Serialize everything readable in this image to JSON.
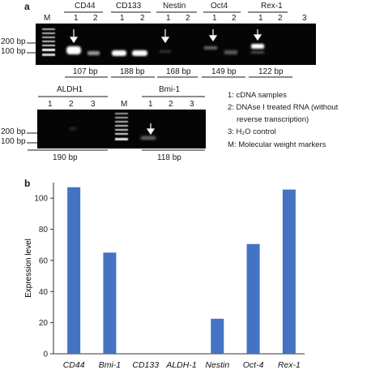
{
  "panel_a": {
    "label": "a",
    "marker_label": "M",
    "gel_top": {
      "genes": [
        "CD44",
        "CD133",
        "Nestin",
        "Oct4",
        "Rex-1"
      ],
      "lanes": [
        "1",
        "2",
        "1",
        "2",
        "1",
        "2",
        "1",
        "2",
        "1",
        "2",
        "3"
      ],
      "sizes": [
        "107 bp",
        "188 bp",
        "168 bp",
        "149 bp",
        "122 bp"
      ],
      "ladder_labels": [
        "200 bp",
        "100 bp"
      ]
    },
    "gel_bottom": {
      "genes": [
        "ALDH1",
        "Bmi-1"
      ],
      "lanes_left": [
        "1",
        "2",
        "3"
      ],
      "lanes_right": [
        "1",
        "2",
        "3"
      ],
      "sizes": [
        "190 bp",
        "118 bp"
      ],
      "ladder_labels": [
        "200 bp",
        "100 bp"
      ]
    },
    "legend": [
      "1: cDNA samples",
      "2: DNAse I treated RNA (without",
      "reverse transcription)",
      "3: H₂O control",
      "M: Molecular weight markers"
    ]
  },
  "panel_b": {
    "label": "b"
  },
  "chart_data": {
    "type": "bar",
    "categories": [
      "CD44",
      "Bmi-1",
      "CD133",
      "ALDH-1",
      "Nestin",
      "Oct-4",
      "Rex-1"
    ],
    "values": [
      107,
      65,
      0,
      0,
      22.5,
      70.5,
      105.5
    ],
    "ylabel": "Expression level",
    "xlabel": "",
    "ylim": [
      0,
      110
    ],
    "yticks": [
      0,
      20,
      40,
      60,
      80,
      100
    ],
    "bar_color": "#4472c4",
    "grid": false
  }
}
